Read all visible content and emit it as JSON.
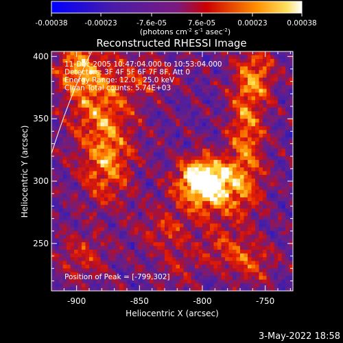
{
  "chart_data": {
    "type": "heatmap",
    "title": "Reconstructed RHESSI Image",
    "xlabel": "Heliocentric X (arcsec)",
    "ylabel": "Heliocentric Y (arcsec)",
    "xlim": [
      -920,
      -728
    ],
    "ylim": [
      212,
      404
    ],
    "xticks": [
      -900,
      -850,
      -800,
      -750
    ],
    "yticks": [
      250,
      300,
      350,
      400
    ],
    "colorbar": {
      "min": -0.00038,
      "max": 0.00038,
      "ticks": [
        "-0.00038",
        "-0.00023",
        "-7.6e-05",
        "7.6e-05",
        "0.00023",
        "0.00038"
      ],
      "tick_values": [
        -0.00038,
        -0.00023,
        -7.6e-05,
        7.6e-05,
        0.00023,
        0.00038
      ],
      "unit_label_main": "(photons cm",
      "unit_exp1": "-2",
      "unit_s": " s",
      "unit_exp2": "-1",
      "unit_asec": " asec",
      "unit_exp3": "-2",
      "unit_close": ")"
    },
    "annotation_lines": [
      "11-Dec-2005 10:47:04.000 to 10:53:04.000",
      "Detectors: 3F 4F 5F 6F 7F 8F, Att 0",
      "Energy Range: 12.0 - 25.0 keV",
      "Clean      Total counts: 5.74E+03"
    ],
    "peak_label": "Position of Peak = [-799,302]",
    "peak": [
      -799,
      302
    ],
    "limb_arc": [
      [
        -920,
        322
      ],
      [
        -905,
        370
      ],
      [
        -888,
        404
      ]
    ],
    "sources": [
      {
        "x": -799,
        "y": 302,
        "amp": 1.0,
        "sx": 14,
        "sy": 12
      },
      {
        "x": -790,
        "y": 290,
        "amp": 0.55,
        "sx": 20,
        "sy": 16
      },
      {
        "x": -880,
        "y": 360,
        "amp": 0.6,
        "sx": 18,
        "sy": 30
      },
      {
        "x": -900,
        "y": 390,
        "amp": 0.55,
        "sx": 12,
        "sy": 14
      },
      {
        "x": -875,
        "y": 310,
        "amp": 0.5,
        "sx": 14,
        "sy": 20
      },
      {
        "x": -765,
        "y": 340,
        "amp": 0.6,
        "sx": 10,
        "sy": 38
      },
      {
        "x": -755,
        "y": 385,
        "amp": 0.45,
        "sx": 10,
        "sy": 14
      },
      {
        "x": -830,
        "y": 260,
        "amp": 0.35,
        "sx": 16,
        "sy": 12
      },
      {
        "x": -780,
        "y": 245,
        "amp": 0.4,
        "sx": 16,
        "sy": 12
      },
      {
        "x": -760,
        "y": 232,
        "amp": 0.35,
        "sx": 12,
        "sy": 10
      },
      {
        "x": -895,
        "y": 240,
        "amp": 0.35,
        "sx": 14,
        "sy": 14
      },
      {
        "x": -840,
        "y": 385,
        "amp": 0.3,
        "sx": 14,
        "sy": 10
      },
      {
        "x": -820,
        "y": 230,
        "amp": 0.25,
        "sx": 12,
        "sy": 10
      }
    ],
    "colors": {
      "lowest": "#0000ff",
      "low": "#3b1fb0",
      "neutral": "#7a2090",
      "mid": "#d01010",
      "high": "#ff8c00",
      "highest": "#ffffff"
    }
  },
  "footer": {
    "timestamp": "3-May-2022 18:58"
  }
}
